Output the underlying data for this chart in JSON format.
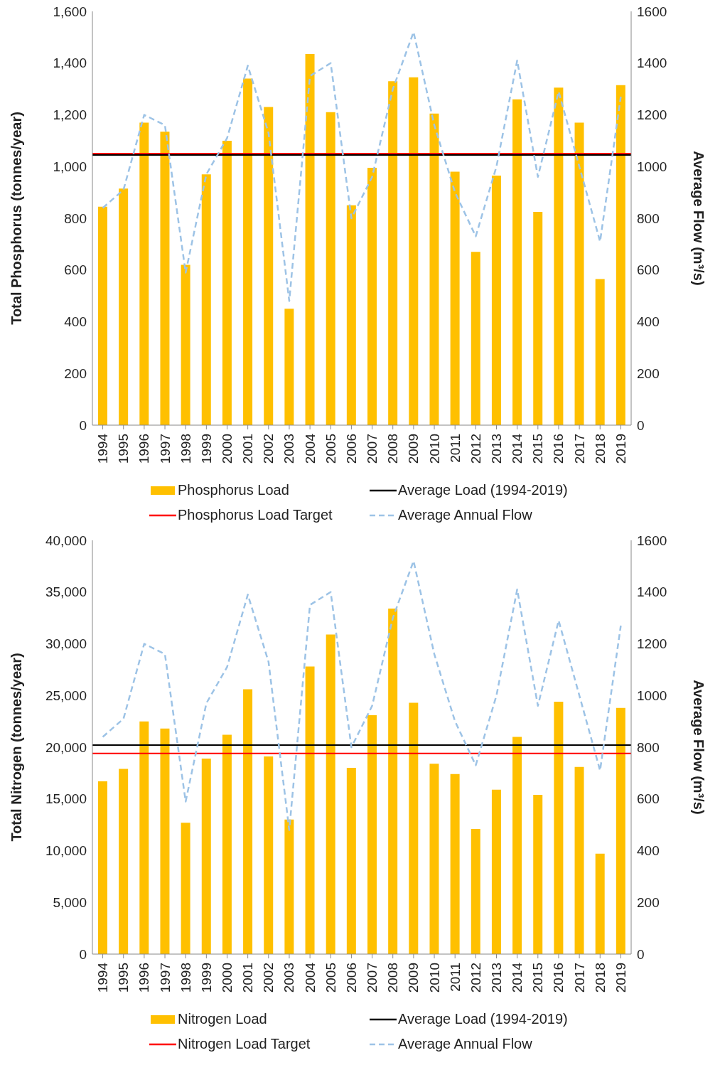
{
  "chart_data": [
    {
      "type": "bar",
      "ylabel": "Total Phosphorus (tonnes/year)",
      "y2label": "Average Flow (m³/s)",
      "categories": [
        "1994",
        "1995",
        "1996",
        "1997",
        "1998",
        "1999",
        "2000",
        "2001",
        "2002",
        "2003",
        "2004",
        "2005",
        "2006",
        "2007",
        "2008",
        "2009",
        "2010",
        "2011",
        "2012",
        "2013",
        "2014",
        "2015",
        "2016",
        "2017",
        "2018",
        "2019"
      ],
      "series": [
        {
          "name": "Phosphorus Load",
          "color": "#ffc000",
          "values": [
            845,
            915,
            1170,
            1135,
            620,
            970,
            1100,
            1340,
            1230,
            450,
            1435,
            1210,
            850,
            995,
            1330,
            1345,
            1205,
            980,
            670,
            965,
            1260,
            825,
            1305,
            1170,
            565,
            1315
          ]
        },
        {
          "name": "Average Annual Flow",
          "type": "line",
          "axis": "y2",
          "color": "#9dc3e6",
          "line_style": "dashed",
          "marker": "none",
          "values": [
            840,
            910,
            1200,
            1160,
            590,
            970,
            1110,
            1390,
            1130,
            480,
            1350,
            1400,
            800,
            960,
            1300,
            1520,
            1160,
            900,
            730,
            1000,
            1410,
            960,
            1290,
            1000,
            710,
            1270
          ]
        }
      ],
      "ref_lines": [
        {
          "axis": "y",
          "value": 1045,
          "label": "Average Load (1994-2019)",
          "color": "#000000"
        },
        {
          "axis": "y",
          "value": 1050,
          "label": "Phosphorus Load Target",
          "color": "#ff0000"
        }
      ],
      "ylim": [
        0,
        1600
      ],
      "yticks": [
        0,
        200,
        400,
        600,
        800,
        {
          "value": 1000,
          "label": "1,000"
        },
        {
          "value": 1200,
          "label": "1,200"
        },
        {
          "value": 1400,
          "label": "1,400"
        },
        {
          "value": 1600,
          "label": "1,600"
        }
      ],
      "y2lim": [
        0,
        1600
      ],
      "y2ticks": [
        0,
        200,
        400,
        600,
        800,
        1000,
        1200,
        1400,
        1600
      ],
      "grid": false,
      "legend": "bottom"
    },
    {
      "type": "bar",
      "ylabel": "Total Nitrogen (tonnes/year)",
      "y2label": "Average Flow (m³/s)",
      "categories": [
        "1994",
        "1995",
        "1996",
        "1997",
        "1998",
        "1999",
        "2000",
        "2001",
        "2002",
        "2003",
        "2004",
        "2005",
        "2006",
        "2007",
        "2008",
        "2009",
        "2010",
        "2011",
        "2012",
        "2013",
        "2014",
        "2015",
        "2016",
        "2017",
        "2018",
        "2019"
      ],
      "series": [
        {
          "name": "Nitrogen Load",
          "color": "#ffc000",
          "values": [
            16700,
            17900,
            22500,
            21800,
            12700,
            18900,
            21200,
            25600,
            19100,
            13000,
            27800,
            30900,
            18000,
            23100,
            33400,
            24300,
            18400,
            17400,
            12100,
            15900,
            21000,
            15400,
            24400,
            18100,
            9700,
            23800
          ]
        },
        {
          "name": "Average Annual Flow",
          "type": "line",
          "axis": "y2",
          "color": "#9dc3e6",
          "line_style": "dashed",
          "marker": "none",
          "values": [
            840,
            910,
            1200,
            1160,
            590,
            970,
            1110,
            1390,
            1130,
            480,
            1350,
            1400,
            800,
            960,
            1300,
            1520,
            1160,
            900,
            730,
            1000,
            1410,
            960,
            1290,
            1000,
            710,
            1270
          ]
        }
      ],
      "ref_lines": [
        {
          "axis": "y",
          "value": 20200,
          "label": "Average Load (1994-2019)",
          "color": "#000000"
        },
        {
          "axis": "y",
          "value": 19400,
          "label": "Nitrogen Load Target",
          "color": "#ff0000"
        }
      ],
      "ylim": [
        0,
        40000
      ],
      "yticks": [
        0,
        {
          "value": 5000,
          "label": "5,000"
        },
        {
          "value": 10000,
          "label": "10,000"
        },
        {
          "value": 15000,
          "label": "15,000"
        },
        {
          "value": 20000,
          "label": "20,000"
        },
        {
          "value": 25000,
          "label": "25,000"
        },
        {
          "value": 30000,
          "label": "30,000"
        },
        {
          "value": 35000,
          "label": "35,000"
        },
        {
          "value": 40000,
          "label": "40,000"
        }
      ],
      "y2lim": [
        0,
        1600
      ],
      "y2ticks": [
        0,
        200,
        400,
        600,
        800,
        1000,
        1200,
        1400,
        1600
      ],
      "grid": false,
      "legend": "bottom"
    }
  ]
}
